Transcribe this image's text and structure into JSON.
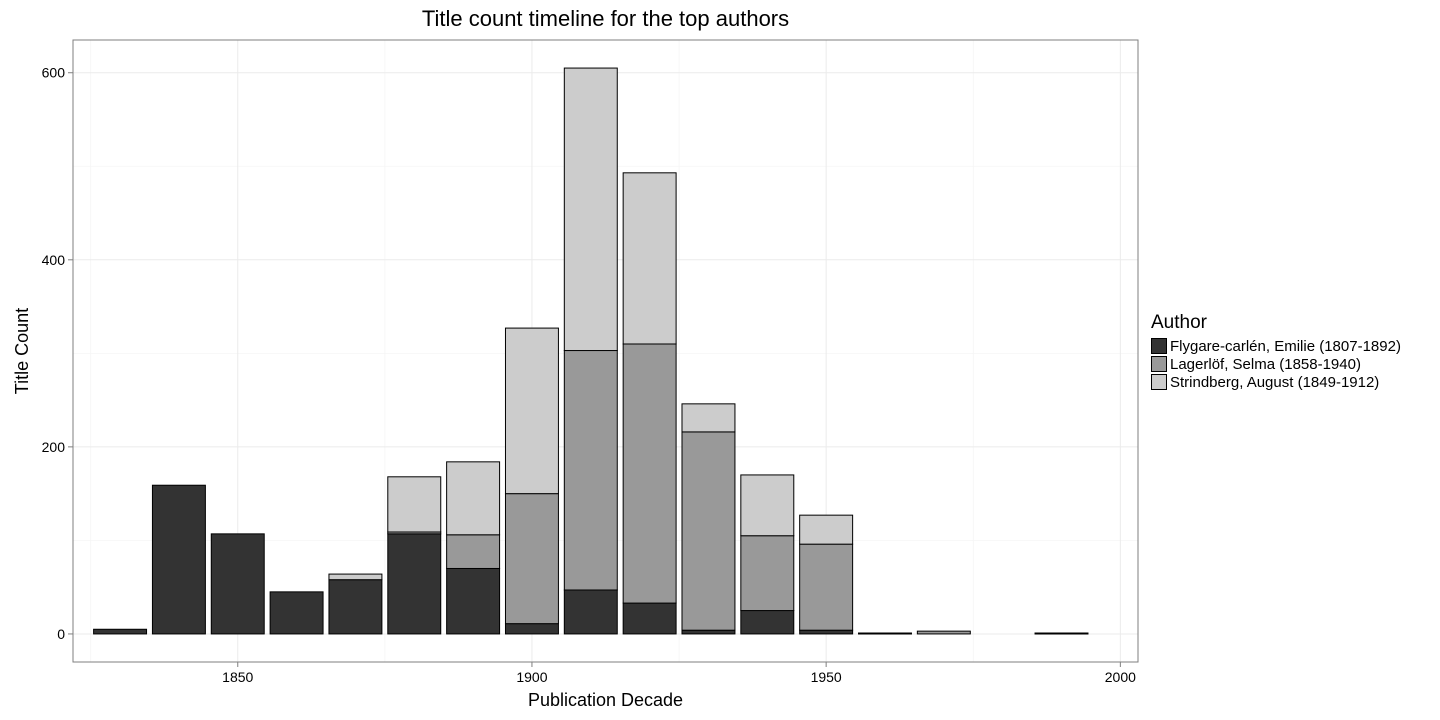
{
  "chart_data": {
    "type": "bar",
    "stacked": true,
    "title": "Title count timeline for the top authors",
    "xlabel": "Publication Decade",
    "ylabel": "Title Count",
    "xlim": [
      1822,
      2003
    ],
    "ylim": [
      -30,
      635
    ],
    "x_ticks": [
      1850,
      1900,
      1950,
      2000
    ],
    "y_ticks": [
      0,
      200,
      400,
      600
    ],
    "bar_width": 9,
    "grid": true,
    "legend": {
      "title": "Author",
      "placement": "right"
    },
    "x": [
      1830,
      1840,
      1850,
      1860,
      1870,
      1880,
      1890,
      1900,
      1910,
      1920,
      1930,
      1940,
      1950,
      1960,
      1970,
      1990
    ],
    "series": [
      {
        "name": "Flygare-carlén, Emilie (1807-1892)",
        "color": "#333333",
        "values": [
          5,
          159,
          107,
          45,
          58,
          107,
          70,
          11,
          47,
          33,
          4,
          25,
          4,
          1,
          0,
          1
        ]
      },
      {
        "name": "Lagerlöf, Selma (1858-1940)",
        "color": "#999999",
        "values": [
          0,
          0,
          0,
          0,
          0,
          2,
          36,
          139,
          256,
          277,
          212,
          80,
          92,
          0,
          3,
          0
        ]
      },
      {
        "name": "Strindberg, August (1849-1912)",
        "color": "#cccccc",
        "values": [
          0,
          0,
          0,
          0,
          6,
          59,
          78,
          177,
          302,
          183,
          30,
          65,
          31,
          0,
          0,
          0
        ]
      }
    ]
  }
}
